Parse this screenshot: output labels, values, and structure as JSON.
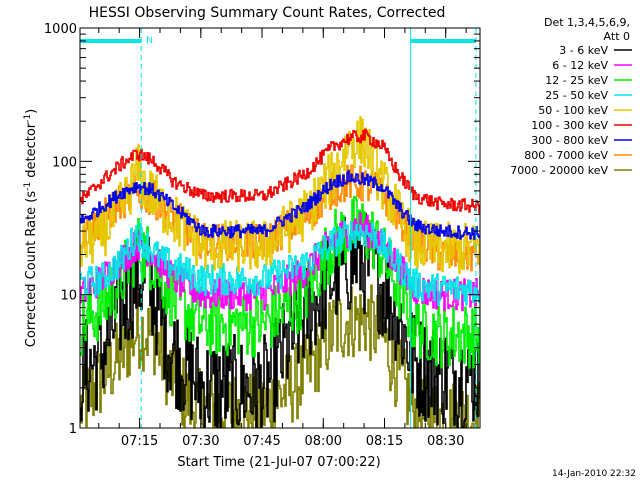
{
  "chart_data": {
    "type": "line",
    "title": "HESSI Observing Summary Count Rates, Corrected",
    "xlabel": "Start Time (21-Jul-07 07:00:22)",
    "ylabel_parts": [
      "Corrected Count Rate (s",
      "-1",
      " detector",
      "-1",
      ")"
    ],
    "footer": "14-Jan-2010 22:32",
    "y_scale": "log",
    "ylim": [
      1,
      1000
    ],
    "y_ticks": [
      {
        "v": 1,
        "label": "1"
      },
      {
        "v": 10,
        "label": "10"
      },
      {
        "v": 100,
        "label": "100"
      },
      {
        "v": 1000,
        "label": "1000"
      }
    ],
    "x_unit": "minutes after 07:00:22",
    "xlim": [
      0,
      98
    ],
    "x_ticks": [
      {
        "v": 14.6,
        "label": "07:15"
      },
      {
        "v": 29.6,
        "label": "07:30"
      },
      {
        "v": 44.6,
        "label": "07:45"
      },
      {
        "v": 59.6,
        "label": "08:00"
      },
      {
        "v": 74.6,
        "label": "08:15"
      },
      {
        "v": 89.6,
        "label": "08:30"
      }
    ],
    "legend": {
      "header": [
        "Det 1,3,4,5,6,9,",
        "Att 0"
      ],
      "placement": "right",
      "entries": [
        {
          "label": "3 - 6 keV",
          "color": "#000000"
        },
        {
          "label": "6 - 12 keV",
          "color": "#ff00ff"
        },
        {
          "label": "12 - 25 keV",
          "color": "#00ee00"
        },
        {
          "label": "25 - 50 keV",
          "color": "#00e5e5"
        },
        {
          "label": "50 - 100 keV",
          "color": "#e6c800"
        },
        {
          "label": "100 - 300 keV",
          "color": "#ee0000"
        },
        {
          "label": "300 - 800 keV",
          "color": "#0000ee"
        },
        {
          "label": "800 - 7000 keV",
          "color": "#ff8c00"
        },
        {
          "label": "7000 - 20000 keV",
          "color": "#808000"
        }
      ]
    },
    "night_marker": {
      "label": "N",
      "color": "#00e5e5",
      "intervals": [
        [
          0,
          15
        ],
        [
          81,
          97
        ]
      ]
    },
    "series": [
      {
        "band": "3 - 6 keV",
        "color": "#000000",
        "noise": 0.4,
        "points": [
          [
            0,
            2.5
          ],
          [
            5,
            3.5
          ],
          [
            10,
            8
          ],
          [
            14,
            14
          ],
          [
            17,
            12
          ],
          [
            22,
            4
          ],
          [
            30,
            2
          ],
          [
            45,
            2
          ],
          [
            55,
            7
          ],
          [
            62,
            14
          ],
          [
            68,
            19
          ],
          [
            72,
            15
          ],
          [
            77,
            8
          ],
          [
            82,
            3
          ],
          [
            88,
            2.5
          ],
          [
            97,
            2.5
          ]
        ]
      },
      {
        "band": "6 - 12 keV",
        "color": "#ff00ff",
        "noise": 0.12,
        "points": [
          [
            0,
            10
          ],
          [
            5,
            13
          ],
          [
            10,
            18
          ],
          [
            14,
            24
          ],
          [
            18,
            20
          ],
          [
            23,
            13
          ],
          [
            30,
            10
          ],
          [
            45,
            10
          ],
          [
            55,
            15
          ],
          [
            62,
            26
          ],
          [
            68,
            33
          ],
          [
            72,
            28
          ],
          [
            77,
            18
          ],
          [
            82,
            11
          ],
          [
            88,
            10
          ],
          [
            97,
            10
          ]
        ]
      },
      {
        "band": "12 - 25 keV",
        "color": "#00ee00",
        "noise": 0.25,
        "points": [
          [
            0,
            6
          ],
          [
            5,
            8
          ],
          [
            10,
            13
          ],
          [
            14,
            23
          ],
          [
            18,
            18
          ],
          [
            23,
            9
          ],
          [
            30,
            6
          ],
          [
            45,
            6
          ],
          [
            55,
            10
          ],
          [
            62,
            25
          ],
          [
            68,
            33
          ],
          [
            72,
            26
          ],
          [
            77,
            13
          ],
          [
            82,
            6
          ],
          [
            88,
            5
          ],
          [
            97,
            5
          ]
        ]
      },
      {
        "band": "25 - 50 keV",
        "color": "#00e5e5",
        "noise": 0.12,
        "points": [
          [
            0,
            12
          ],
          [
            5,
            13
          ],
          [
            10,
            18
          ],
          [
            13,
            26
          ],
          [
            14,
            30
          ],
          [
            15,
            26
          ],
          [
            20,
            18
          ],
          [
            30,
            13
          ],
          [
            45,
            13
          ],
          [
            55,
            17
          ],
          [
            62,
            25
          ],
          [
            68,
            30
          ],
          [
            72,
            28
          ],
          [
            77,
            18
          ],
          [
            82,
            12
          ],
          [
            88,
            11
          ],
          [
            97,
            11
          ]
        ]
      },
      {
        "band": "50 - 100 keV",
        "color": "#e6c800",
        "noise": 0.2,
        "points": [
          [
            0,
            23
          ],
          [
            5,
            28
          ],
          [
            10,
            45
          ],
          [
            13,
            70
          ],
          [
            14,
            90
          ],
          [
            15,
            70
          ],
          [
            20,
            45
          ],
          [
            30,
            23
          ],
          [
            45,
            23
          ],
          [
            55,
            40
          ],
          [
            62,
            80
          ],
          [
            66,
            140
          ],
          [
            70,
            140
          ],
          [
            72,
            90
          ],
          [
            77,
            45
          ],
          [
            82,
            23
          ],
          [
            88,
            22
          ],
          [
            97,
            22
          ]
        ]
      },
      {
        "band": "100 - 300 keV",
        "color": "#ee0000",
        "noise": 0.05,
        "points": [
          [
            0,
            50
          ],
          [
            5,
            70
          ],
          [
            10,
            95
          ],
          [
            14,
            115
          ],
          [
            18,
            100
          ],
          [
            23,
            70
          ],
          [
            30,
            55
          ],
          [
            45,
            55
          ],
          [
            55,
            80
          ],
          [
            62,
            130
          ],
          [
            66,
            150
          ],
          [
            70,
            155
          ],
          [
            74,
            130
          ],
          [
            78,
            80
          ],
          [
            82,
            55
          ],
          [
            88,
            48
          ],
          [
            97,
            46
          ]
        ]
      },
      {
        "band": "300 - 800 keV",
        "color": "#0000ee",
        "noise": 0.05,
        "points": [
          [
            0,
            35
          ],
          [
            5,
            45
          ],
          [
            10,
            58
          ],
          [
            14,
            66
          ],
          [
            18,
            60
          ],
          [
            23,
            45
          ],
          [
            30,
            30
          ],
          [
            45,
            30
          ],
          [
            55,
            45
          ],
          [
            62,
            70
          ],
          [
            66,
            76
          ],
          [
            70,
            72
          ],
          [
            74,
            65
          ],
          [
            78,
            45
          ],
          [
            82,
            33
          ],
          [
            88,
            30
          ],
          [
            97,
            29
          ]
        ]
      },
      {
        "band": "800 - 7000 keV",
        "color": "#ff8c00",
        "noise": 0.14,
        "points": [
          [
            0,
            28
          ],
          [
            5,
            36
          ],
          [
            10,
            50
          ],
          [
            14,
            58
          ],
          [
            18,
            52
          ],
          [
            23,
            38
          ],
          [
            30,
            25
          ],
          [
            45,
            25
          ],
          [
            55,
            38
          ],
          [
            62,
            62
          ],
          [
            66,
            70
          ],
          [
            70,
            66
          ],
          [
            74,
            58
          ],
          [
            78,
            38
          ],
          [
            82,
            26
          ],
          [
            88,
            20
          ],
          [
            97,
            20
          ]
        ]
      },
      {
        "band": "7000 - 20000 keV",
        "color": "#808000",
        "noise": 0.3,
        "points": [
          [
            0,
            1.4
          ],
          [
            6,
            2.5
          ],
          [
            10,
            3.5
          ],
          [
            14,
            5.5
          ],
          [
            18,
            5
          ],
          [
            22,
            2.5
          ],
          [
            28,
            1.4
          ],
          [
            45,
            1.4
          ],
          [
            55,
            2.5
          ],
          [
            62,
            5.5
          ],
          [
            66,
            6.5
          ],
          [
            70,
            6.5
          ],
          [
            74,
            5
          ],
          [
            78,
            2.5
          ],
          [
            82,
            1.3
          ],
          [
            90,
            1.2
          ],
          [
            97,
            1.2
          ]
        ]
      }
    ]
  }
}
